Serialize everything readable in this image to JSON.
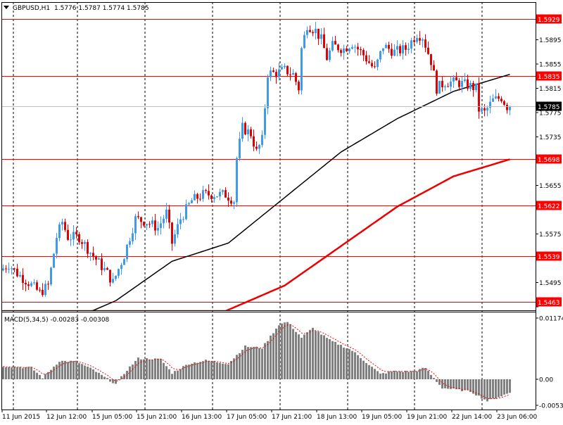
{
  "header": {
    "symbol": "GBPUSD,H1",
    "ohlc": "1.5776 1.5787 1.5774 1.5785"
  },
  "colors": {
    "bull": "#3c9af0",
    "bear": "#e30000",
    "level": "#ff0000",
    "ma_fast": "#000000",
    "ma_slow": "#ee0000",
    "macd_hist": "#808080",
    "macd_signal": "#ff0000"
  },
  "price_axis": {
    "min": 1.5455,
    "max": 1.5935,
    "ticks": [
      "1.5935",
      "1.5895",
      "1.5855",
      "1.5815",
      "1.5775",
      "1.5735",
      "1.5695",
      "1.5655",
      "1.5615",
      "1.5575",
      "1.5535",
      "1.5495",
      "1.5455"
    ]
  },
  "levels": [
    {
      "label": "1.5929",
      "value": 1.5929
    },
    {
      "label": "1.5835",
      "value": 1.5835
    },
    {
      "label": "1.5698",
      "value": 1.5698
    },
    {
      "label": "1.5622",
      "value": 1.5622
    },
    {
      "label": "1.5539",
      "value": 1.5539
    },
    {
      "label": "1.5463",
      "value": 1.5463
    }
  ],
  "current_price": {
    "label": "1.5785",
    "value": 1.5785
  },
  "macd": {
    "label": "MACD(5,34,5) -0.00283 -0.00308",
    "max": 0.01174,
    "min": -0.00539,
    "ticks": [
      "0.01174",
      "0.00",
      "-0.00539"
    ]
  },
  "time_axis": {
    "labels": [
      "11 Jun 2015",
      "12 Jun 12:00",
      "15 Jun 05:00",
      "15 Jun 21:00",
      "16 Jun 13:00",
      "17 Jun 05:00",
      "17 Jun 21:00",
      "18 Jun 13:00",
      "19 Jun 05:00",
      "19 Jun 21:00",
      "22 Jun 14:00",
      "23 Jun 06:00"
    ]
  },
  "chart_data": {
    "type": "candlestick",
    "symbol": "GBPUSD",
    "timeframe": "H1",
    "anchors": [
      {
        "bar": 0,
        "price": 1.5515
      },
      {
        "bar": 3,
        "price": 1.5525
      },
      {
        "bar": 6,
        "price": 1.551
      },
      {
        "bar": 10,
        "price": 1.5495
      },
      {
        "bar": 14,
        "price": 1.5478
      },
      {
        "bar": 17,
        "price": 1.549
      },
      {
        "bar": 20,
        "price": 1.557
      },
      {
        "bar": 22,
        "price": 1.5595
      },
      {
        "bar": 24,
        "price": 1.557
      },
      {
        "bar": 28,
        "price": 1.557
      },
      {
        "bar": 32,
        "price": 1.5545
      },
      {
        "bar": 38,
        "price": 1.551
      },
      {
        "bar": 40,
        "price": 1.5495
      },
      {
        "bar": 44,
        "price": 1.554
      },
      {
        "bar": 48,
        "price": 1.56
      },
      {
        "bar": 52,
        "price": 1.5595
      },
      {
        "bar": 56,
        "price": 1.5585
      },
      {
        "bar": 59,
        "price": 1.561
      },
      {
        "bar": 61,
        "price": 1.556
      },
      {
        "bar": 64,
        "price": 1.56
      },
      {
        "bar": 68,
        "price": 1.563
      },
      {
        "bar": 72,
        "price": 1.564
      },
      {
        "bar": 76,
        "price": 1.564
      },
      {
        "bar": 80,
        "price": 1.564
      },
      {
        "bar": 83,
        "price": 1.563
      },
      {
        "bar": 84,
        "price": 1.57
      },
      {
        "bar": 86,
        "price": 1.575
      },
      {
        "bar": 89,
        "price": 1.574
      },
      {
        "bar": 91,
        "price": 1.571
      },
      {
        "bar": 93,
        "price": 1.573
      },
      {
        "bar": 95,
        "price": 1.584
      },
      {
        "bar": 98,
        "price": 1.584
      },
      {
        "bar": 101,
        "price": 1.5845
      },
      {
        "bar": 104,
        "price": 1.5838
      },
      {
        "bar": 106,
        "price": 1.5815
      },
      {
        "bar": 107,
        "price": 1.588
      },
      {
        "bar": 109,
        "price": 1.592
      },
      {
        "bar": 112,
        "price": 1.591
      },
      {
        "bar": 114,
        "price": 1.5895
      },
      {
        "bar": 116,
        "price": 1.5865
      },
      {
        "bar": 118,
        "price": 1.5885
      },
      {
        "bar": 122,
        "price": 1.588
      },
      {
        "bar": 125,
        "price": 1.589
      },
      {
        "bar": 129,
        "price": 1.587
      },
      {
        "bar": 133,
        "price": 1.5845
      },
      {
        "bar": 136,
        "price": 1.5885
      },
      {
        "bar": 140,
        "price": 1.5875
      },
      {
        "bar": 144,
        "price": 1.588
      },
      {
        "bar": 148,
        "price": 1.5905
      },
      {
        "bar": 150,
        "price": 1.59
      },
      {
        "bar": 153,
        "price": 1.586
      },
      {
        "bar": 155,
        "price": 1.5815
      },
      {
        "bar": 158,
        "price": 1.5825
      },
      {
        "bar": 162,
        "price": 1.5825
      },
      {
        "bar": 166,
        "price": 1.582
      },
      {
        "bar": 169,
        "price": 1.5815
      },
      {
        "bar": 170,
        "price": 1.578
      },
      {
        "bar": 172,
        "price": 1.5775
      },
      {
        "bar": 175,
        "price": 1.5795
      },
      {
        "bar": 178,
        "price": 1.58
      },
      {
        "bar": 180,
        "price": 1.5785
      }
    ],
    "ma_fast": [
      {
        "bar": 0,
        "price": 1.5405
      },
      {
        "bar": 20,
        "price": 1.5425
      },
      {
        "bar": 40,
        "price": 1.5465
      },
      {
        "bar": 60,
        "price": 1.553
      },
      {
        "bar": 80,
        "price": 1.556
      },
      {
        "bar": 100,
        "price": 1.5635
      },
      {
        "bar": 120,
        "price": 1.571
      },
      {
        "bar": 140,
        "price": 1.5765
      },
      {
        "bar": 160,
        "price": 1.581
      },
      {
        "bar": 180,
        "price": 1.5838
      }
    ],
    "ma_slow": [
      {
        "bar": 0,
        "price": 1.53
      },
      {
        "bar": 40,
        "price": 1.535
      },
      {
        "bar": 60,
        "price": 1.54
      },
      {
        "bar": 80,
        "price": 1.545
      },
      {
        "bar": 100,
        "price": 1.549
      },
      {
        "bar": 120,
        "price": 1.5555
      },
      {
        "bar": 140,
        "price": 1.562
      },
      {
        "bar": 160,
        "price": 1.567
      },
      {
        "bar": 180,
        "price": 1.5698
      }
    ],
    "macd_hist": [
      {
        "bar": 0,
        "value": 0.0025
      },
      {
        "bar": 10,
        "value": 0.0022
      },
      {
        "bar": 14,
        "value": 0.0003
      },
      {
        "bar": 20,
        "value": 0.0035
      },
      {
        "bar": 26,
        "value": 0.0034
      },
      {
        "bar": 32,
        "value": 0.0018
      },
      {
        "bar": 40,
        "value": -0.001
      },
      {
        "bar": 44,
        "value": 0.0018
      },
      {
        "bar": 48,
        "value": 0.004
      },
      {
        "bar": 56,
        "value": 0.0038
      },
      {
        "bar": 60,
        "value": 0.0012
      },
      {
        "bar": 66,
        "value": 0.003
      },
      {
        "bar": 72,
        "value": 0.0036
      },
      {
        "bar": 80,
        "value": 0.003
      },
      {
        "bar": 86,
        "value": 0.0063
      },
      {
        "bar": 92,
        "value": 0.006
      },
      {
        "bar": 98,
        "value": 0.0105
      },
      {
        "bar": 101,
        "value": 0.011
      },
      {
        "bar": 106,
        "value": 0.008
      },
      {
        "bar": 110,
        "value": 0.0098
      },
      {
        "bar": 116,
        "value": 0.0075
      },
      {
        "bar": 124,
        "value": 0.0055
      },
      {
        "bar": 134,
        "value": 0.001
      },
      {
        "bar": 138,
        "value": 0.0015
      },
      {
        "bar": 146,
        "value": 0.0015
      },
      {
        "bar": 150,
        "value": 0.0022
      },
      {
        "bar": 156,
        "value": -0.0018
      },
      {
        "bar": 166,
        "value": -0.0025
      },
      {
        "bar": 172,
        "value": -0.0045
      },
      {
        "bar": 180,
        "value": -0.0028
      }
    ]
  }
}
